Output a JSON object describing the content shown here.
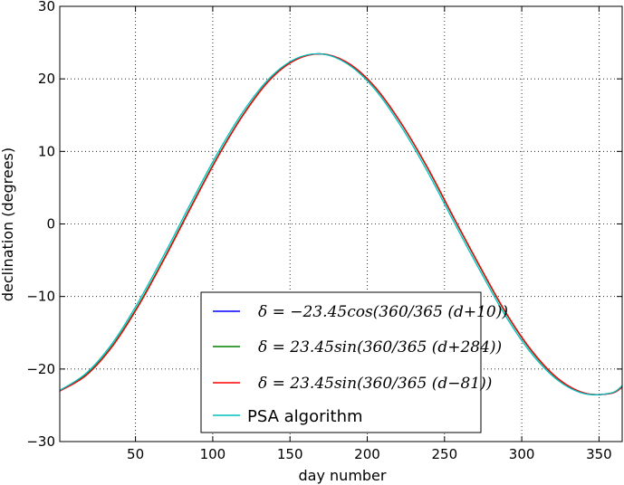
{
  "chart_data": {
    "type": "line",
    "xlabel": "day number",
    "ylabel": "declination (degrees)",
    "xlim": [
      1,
      365
    ],
    "ylim": [
      -30,
      30
    ],
    "xticks": [
      50,
      100,
      150,
      200,
      250,
      300,
      350
    ],
    "yticks": [
      -30,
      -20,
      -10,
      0,
      10,
      20,
      30
    ],
    "grid": true,
    "legend_position": "lower-center",
    "series": [
      {
        "name": "δ = −23.45cos(360/365 (d+10))",
        "color": "#0000ff",
        "values": [
          -23.01,
          -20.82,
          -16.79,
          -11.16,
          -4.57,
          2.43,
          9.21,
          15.19,
          19.9,
          22.67,
          23.43,
          22.12,
          18.86,
          13.84,
          7.71,
          0.81,
          -5.95,
          -12.39,
          -17.69,
          -21.43,
          -23.35,
          -23.34,
          -22.44
        ]
      },
      {
        "name": "δ = 23.45sin(360/365 (d+284))",
        "color": "#008000",
        "values": [
          -23.01,
          -20.82,
          -16.79,
          -11.16,
          -4.57,
          2.43,
          9.21,
          15.19,
          19.9,
          22.67,
          23.43,
          22.12,
          18.86,
          13.84,
          7.71,
          0.81,
          -5.95,
          -12.39,
          -17.69,
          -21.43,
          -23.35,
          -23.34,
          -22.44
        ]
      },
      {
        "name": "δ = 23.45sin(360/365 (d−81))",
        "color": "#ff0000",
        "values": [
          -23.05,
          -20.9,
          -16.9,
          -11.3,
          -4.7,
          2.3,
          9.1,
          15.1,
          19.85,
          22.65,
          23.43,
          22.15,
          18.9,
          13.9,
          7.8,
          0.9,
          -5.85,
          -12.3,
          -17.6,
          -21.4,
          -23.33,
          -23.36,
          -22.5
        ]
      },
      {
        "name": "PSA algorithm",
        "color": "#00bfbf",
        "values": [
          -22.95,
          -20.6,
          -16.45,
          -10.7,
          -4.05,
          2.95,
          9.7,
          15.6,
          20.15,
          22.8,
          23.42,
          21.95,
          18.55,
          13.4,
          7.2,
          0.3,
          -6.45,
          -12.85,
          -18.05,
          -21.65,
          -23.42,
          -23.3,
          -22.3
        ]
      }
    ],
    "x": [
      1,
      18,
      35,
      52,
      69,
      86,
      103,
      120,
      137,
      154,
      171,
      188,
      205,
      222,
      239,
      256,
      273,
      290,
      307,
      324,
      341,
      358,
      365
    ]
  },
  "legend": {
    "labels": [
      "δ = −23.45cos(360/365 (d+10))",
      "δ = 23.45sin(360/365 (d+284))",
      "δ = 23.45sin(360/365 (d−81))",
      "PSA algorithm"
    ]
  }
}
